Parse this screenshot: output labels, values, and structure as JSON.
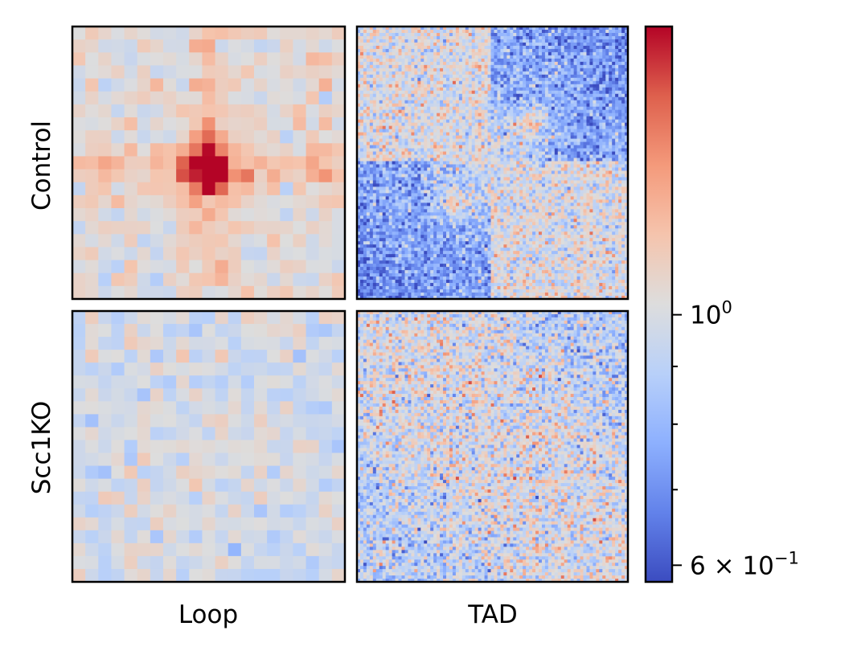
{
  "chart_data": {
    "type": "heatmap",
    "layout": "2x2 grid of heatmap panels with shared colorbar",
    "row_labels": [
      "Control",
      "Scc1KO"
    ],
    "col_labels": [
      "Loop",
      "TAD"
    ],
    "colormap": "coolwarm",
    "color_scale": "log",
    "colorbar": {
      "min": 0.58,
      "max": 1.8,
      "major_ticks": [
        {
          "value": 0.6,
          "base": "6 × 10",
          "exp": "−1"
        },
        {
          "value": 1.0,
          "base": "10",
          "exp": "0"
        }
      ],
      "minor_ticks": [
        0.7,
        0.8,
        0.9
      ]
    },
    "panels": [
      {
        "row": "Control",
        "col": "Loop",
        "grid": 21,
        "seed": 11,
        "noise": 0.07,
        "features": [
          {
            "kind": "peak",
            "cx": 0.5,
            "cy": 0.52,
            "amp": 0.5,
            "sigma": 0.07
          },
          {
            "kind": "stripe_h",
            "c": 0.52,
            "amp": 0.14,
            "w": 0.05
          },
          {
            "kind": "stripe_v",
            "c": 0.5,
            "amp": 0.14,
            "w": 0.05
          },
          {
            "kind": "offset",
            "amp": 0.04
          }
        ]
      },
      {
        "row": "Control",
        "col": "TAD",
        "grid": 85,
        "seed": 23,
        "noise": 0.13,
        "features": [
          {
            "kind": "tad_checker",
            "centers": [
              0.35,
              0.65
            ],
            "blue": -0.28,
            "red": 0.3,
            "sigma": 0.05
          }
        ]
      },
      {
        "row": "Scc1KO",
        "col": "Loop",
        "grid": 21,
        "seed": 37,
        "noise": 0.07,
        "features": [
          {
            "kind": "peak",
            "cx": 0.55,
            "cy": 0.42,
            "amp": 0.12,
            "sigma": 0.05
          },
          {
            "kind": "offset",
            "amp": -0.02
          }
        ]
      },
      {
        "row": "Scc1KO",
        "col": "TAD",
        "grid": 85,
        "seed": 41,
        "noise": 0.15,
        "features": [
          {
            "kind": "corner_blue",
            "amp": -0.12
          }
        ]
      }
    ]
  }
}
